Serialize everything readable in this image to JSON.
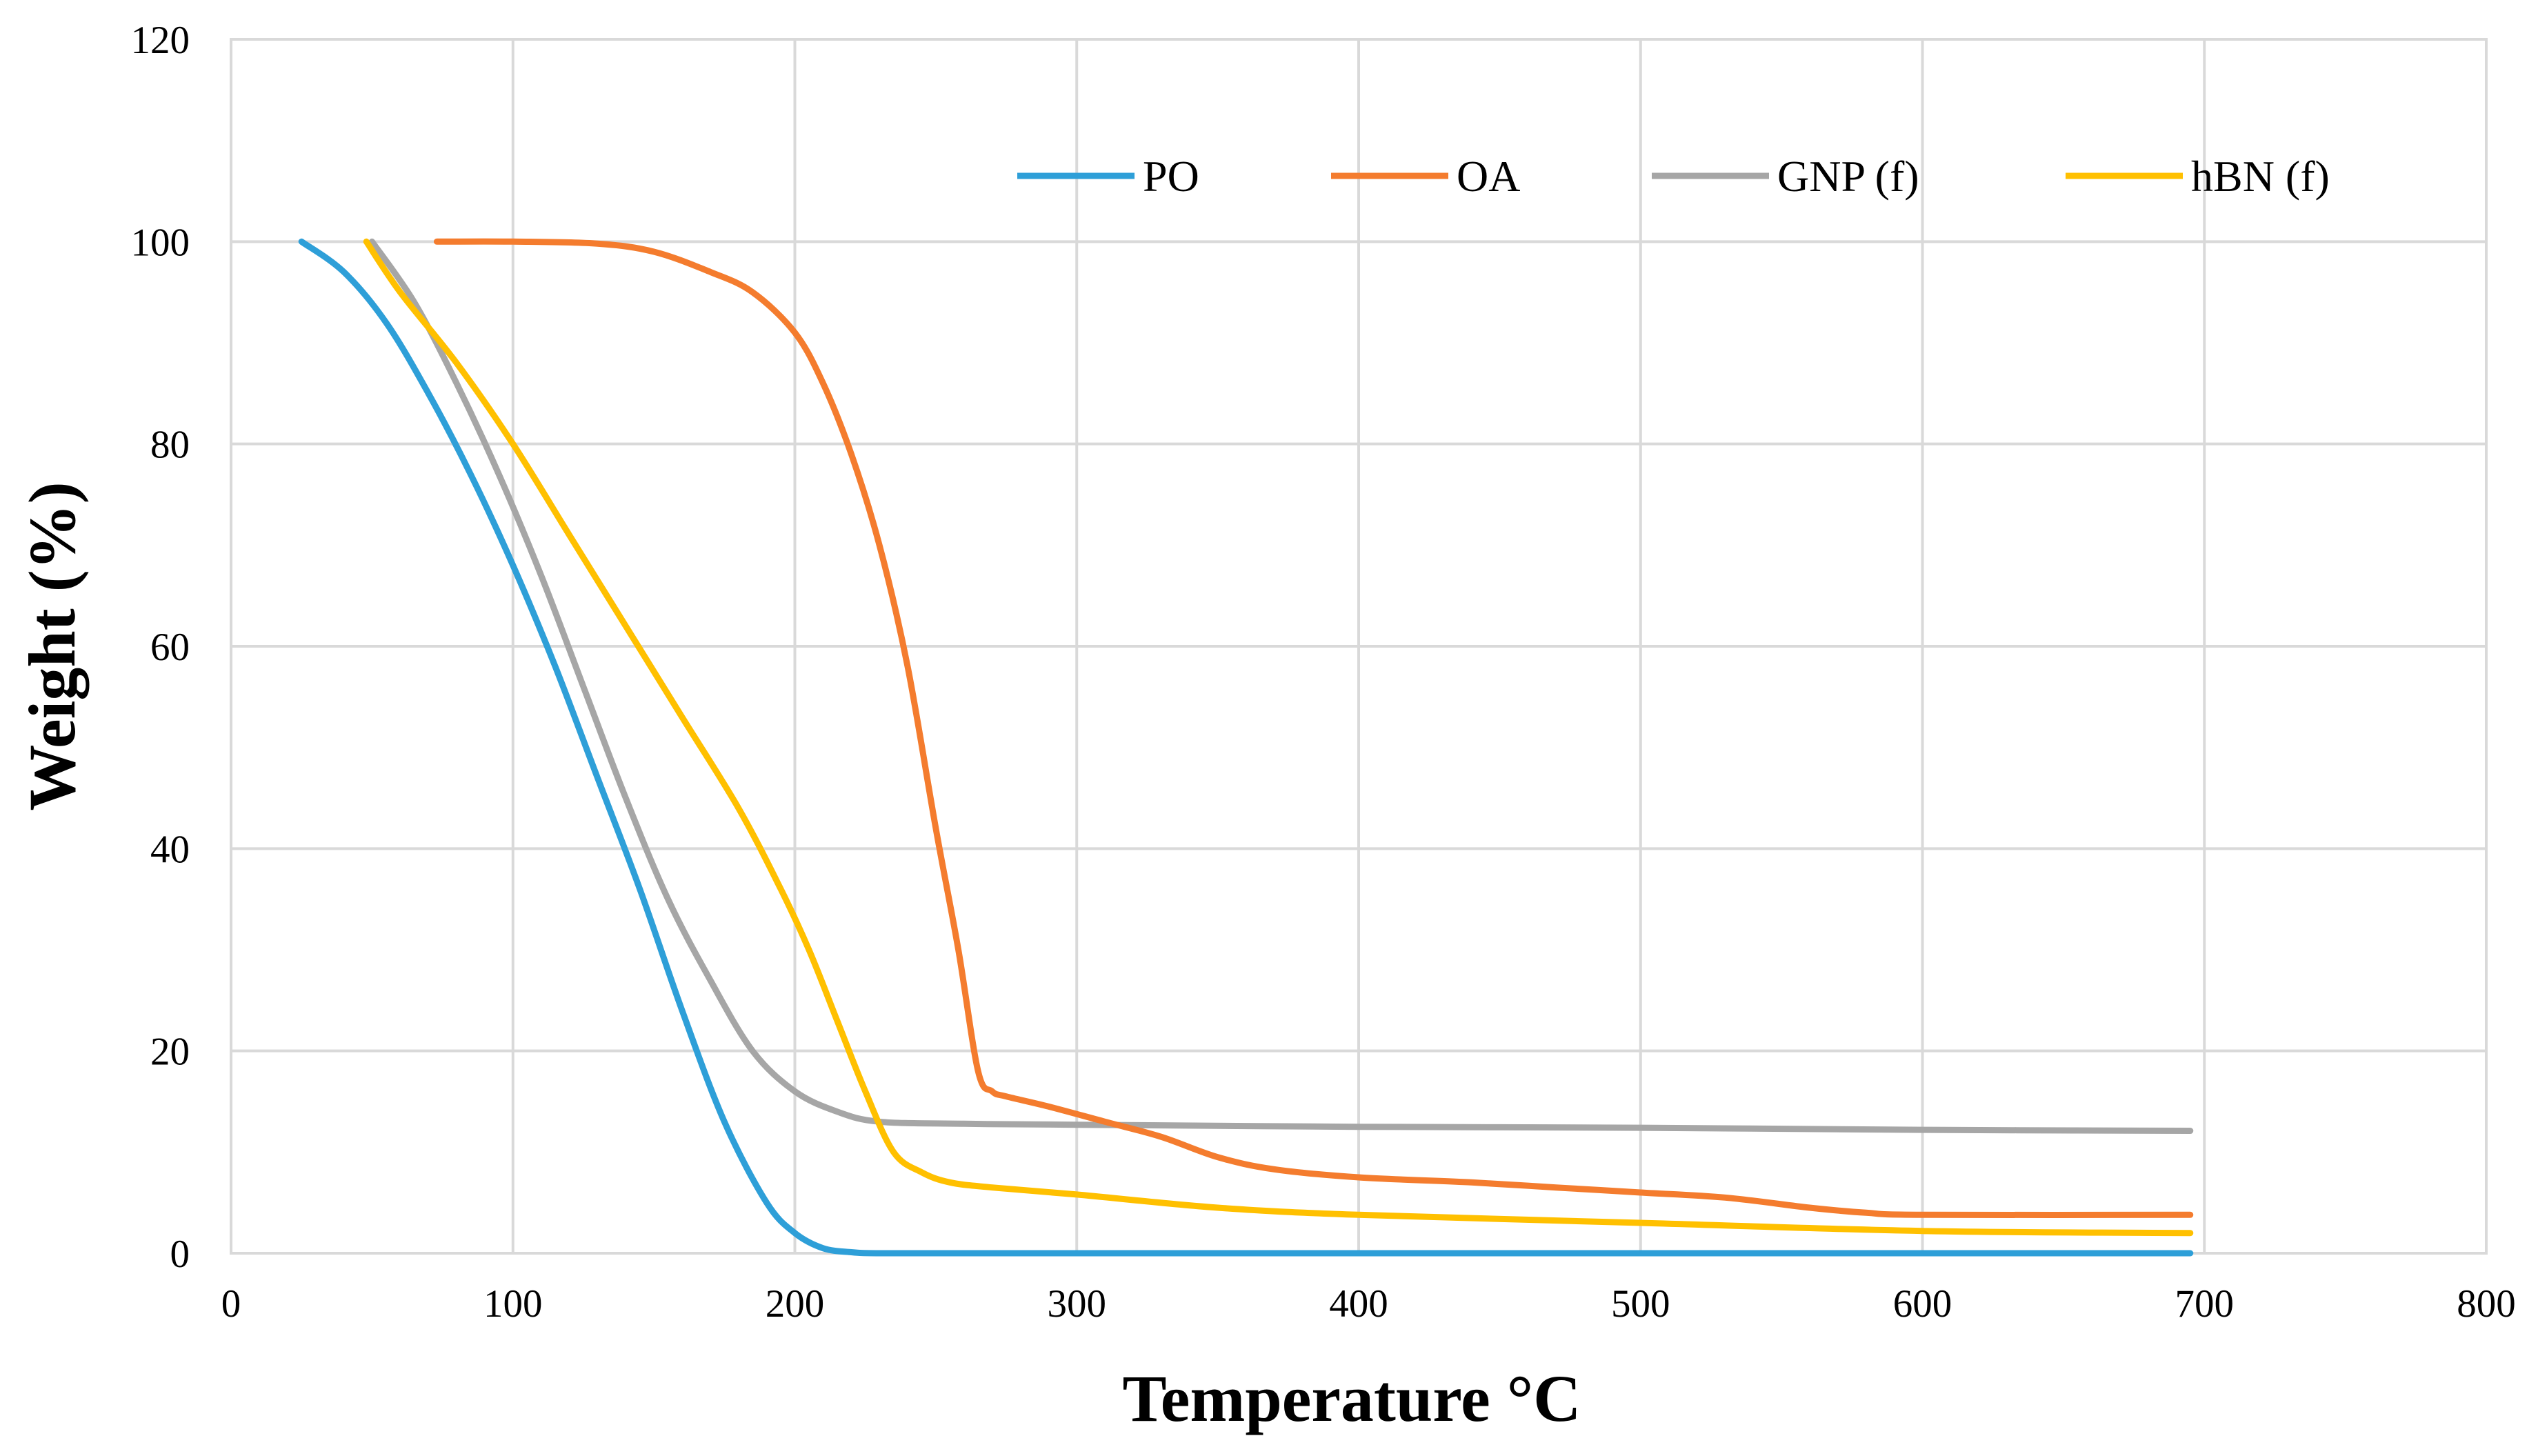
{
  "chart_data": {
    "type": "line",
    "title": "",
    "xlabel": "Temperature °C",
    "ylabel": "Weight (%)",
    "xlim": [
      0,
      800
    ],
    "ylim": [
      0,
      120
    ],
    "xticks": [
      0,
      100,
      200,
      300,
      400,
      500,
      600,
      700,
      800
    ],
    "yticks": [
      0,
      20,
      40,
      60,
      80,
      100,
      120
    ],
    "xtick_labels": [
      "0",
      "100",
      "200",
      "300",
      "400",
      "500",
      "600",
      "700",
      "800"
    ],
    "ytick_labels": [
      "0",
      "20",
      "40",
      "60",
      "80",
      "100",
      "120"
    ],
    "grid": true,
    "legend_position": "top-right",
    "series": [
      {
        "name": "PO",
        "color": "#2e9fd8",
        "x": [
          25,
          40,
          55,
          70,
          85,
          100,
          115,
          130,
          145,
          160,
          175,
          190,
          200,
          210,
          220,
          230,
          260,
          300,
          400,
          500,
          600,
          695
        ],
        "y": [
          100,
          97,
          92,
          85,
          77,
          68,
          58,
          47,
          36,
          24,
          13,
          5,
          2,
          0.5,
          0.1,
          0,
          0,
          0,
          0,
          0,
          0,
          0
        ]
      },
      {
        "name": "OA",
        "color": "#f47c2e",
        "x": [
          73,
          100,
          130,
          150,
          170,
          185,
          200,
          210,
          220,
          230,
          240,
          250,
          258,
          265,
          270,
          275,
          290,
          310,
          330,
          350,
          370,
          400,
          440,
          470,
          500,
          530,
          560,
          580,
          600,
          695
        ],
        "y": [
          100,
          100,
          99.8,
          99,
          97,
          95,
          91,
          86,
          79,
          70,
          58,
          42,
          30,
          18,
          16,
          15.5,
          14.5,
          13,
          11.5,
          9.5,
          8.3,
          7.5,
          7,
          6.5,
          6,
          5.5,
          4.5,
          4,
          3.8,
          3.8
        ]
      },
      {
        "name": "GNP (f)",
        "color": "#a6a6a6",
        "x": [
          50,
          65,
          80,
          95,
          110,
          125,
          140,
          155,
          170,
          185,
          200,
          215,
          230,
          260,
          300,
          400,
          500,
          600,
          695
        ],
        "y": [
          100,
          94,
          86,
          77,
          67,
          56,
          45,
          35,
          27,
          20,
          16,
          14,
          13,
          12.8,
          12.7,
          12.5,
          12.4,
          12.2,
          12.1
        ]
      },
      {
        "name": "hBN (f)",
        "color": "#ffc000",
        "x": [
          48,
          60,
          80,
          100,
          120,
          140,
          160,
          180,
          195,
          205,
          215,
          225,
          235,
          245,
          255,
          270,
          300,
          350,
          400,
          500,
          600,
          695
        ],
        "y": [
          100,
          95,
          88,
          80,
          71,
          62,
          53,
          44,
          36,
          30,
          23,
          16,
          10,
          8,
          7,
          6.5,
          5.8,
          4.5,
          3.8,
          3,
          2.2,
          2
        ]
      }
    ]
  }
}
